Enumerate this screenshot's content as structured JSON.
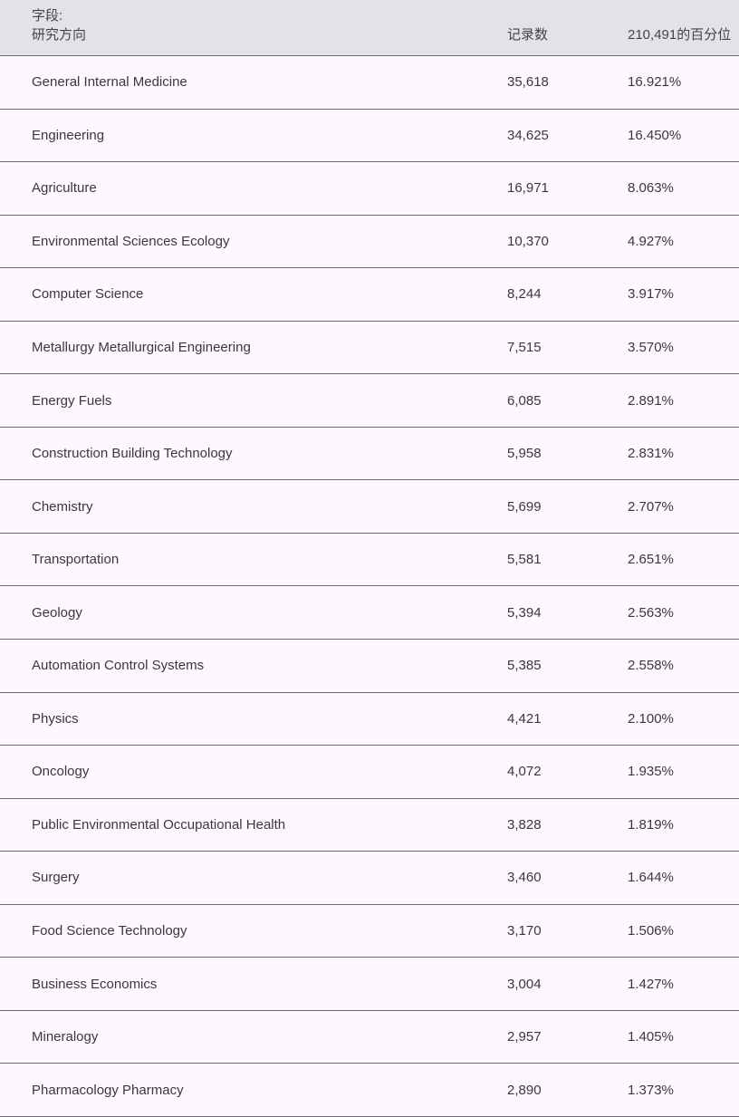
{
  "table": {
    "header": {
      "field_label_line1": "字段:",
      "field_label_line2": "研究方向",
      "records_label": "记录数",
      "percentile_label": "210,491的百分位"
    },
    "total_records": "210,491",
    "rows": [
      {
        "field": "General Internal Medicine",
        "records": "35,618",
        "percentile": "16.921%"
      },
      {
        "field": "Engineering",
        "records": "34,625",
        "percentile": "16.450%"
      },
      {
        "field": "Agriculture",
        "records": "16,971",
        "percentile": "8.063%"
      },
      {
        "field": "Environmental Sciences Ecology",
        "records": "10,370",
        "percentile": "4.927%"
      },
      {
        "field": "Computer Science",
        "records": "8,244",
        "percentile": "3.917%"
      },
      {
        "field": "Metallurgy Metallurgical Engineering",
        "records": "7,515",
        "percentile": "3.570%"
      },
      {
        "field": "Energy Fuels",
        "records": "6,085",
        "percentile": "2.891%"
      },
      {
        "field": "Construction Building Technology",
        "records": "5,958",
        "percentile": "2.831%"
      },
      {
        "field": "Chemistry",
        "records": "5,699",
        "percentile": "2.707%"
      },
      {
        "field": "Transportation",
        "records": "5,581",
        "percentile": "2.651%"
      },
      {
        "field": "Geology",
        "records": "5,394",
        "percentile": "2.563%"
      },
      {
        "field": "Automation Control Systems",
        "records": "5,385",
        "percentile": "2.558%"
      },
      {
        "field": "Physics",
        "records": "4,421",
        "percentile": "2.100%"
      },
      {
        "field": "Oncology",
        "records": "4,072",
        "percentile": "1.935%"
      },
      {
        "field": "Public Environmental Occupational Health",
        "records": "3,828",
        "percentile": "1.819%"
      },
      {
        "field": "Surgery",
        "records": "3,460",
        "percentile": "1.644%"
      },
      {
        "field": "Food Science Technology",
        "records": "3,170",
        "percentile": "1.506%"
      },
      {
        "field": "Business Economics",
        "records": "3,004",
        "percentile": "1.427%"
      },
      {
        "field": "Mineralogy",
        "records": "2,957",
        "percentile": "1.405%"
      },
      {
        "field": "Pharmacology Pharmacy",
        "records": "2,890",
        "percentile": "1.373%"
      }
    ]
  },
  "colors": {
    "header_bg": "#e4e2e9",
    "row_bg": "#fdf8fe",
    "divider": "#6f6a75",
    "text": "#39383e"
  }
}
